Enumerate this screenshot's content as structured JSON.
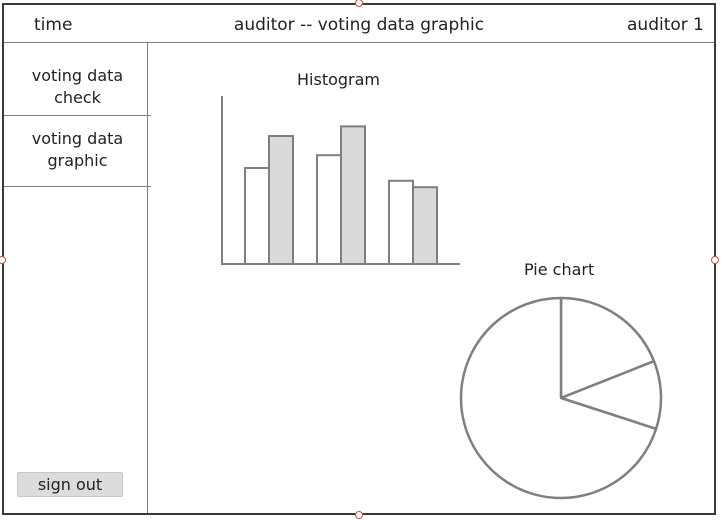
{
  "header": {
    "time_label": "time",
    "title": "auditor -- voting data graphic",
    "user_label": "auditor 1"
  },
  "sidebar": {
    "items": [
      {
        "line1": "voting data",
        "line2": "check"
      },
      {
        "line1": "voting data",
        "line2": "graphic"
      }
    ],
    "signout_label": "sign out"
  },
  "chart_data": [
    {
      "type": "bar",
      "title": "Histogram",
      "categories": [
        "",
        "",
        ""
      ],
      "series": [
        {
          "values": [
            6.0,
            6.8,
            5.2
          ],
          "color": "#ffffff"
        },
        {
          "values": [
            8.0,
            8.6,
            4.8
          ],
          "color": "#d9d9d9"
        }
      ],
      "ylim": [
        0,
        10
      ],
      "grid": false
    },
    {
      "type": "pie",
      "title": "Pie chart",
      "values": [
        19,
        11,
        70
      ],
      "colors": [
        "#ffffff",
        "#ffffff",
        "#ffffff"
      ]
    }
  ]
}
